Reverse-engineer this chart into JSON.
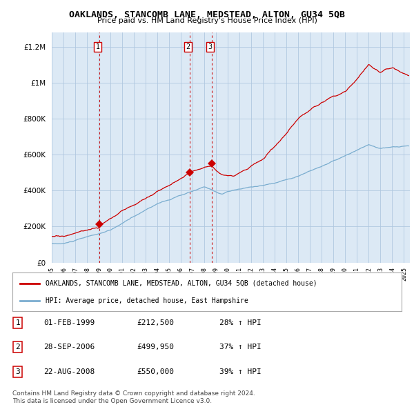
{
  "title": "OAKLANDS, STANCOMB LANE, MEDSTEAD, ALTON, GU34 5QB",
  "subtitle": "Price paid vs. HM Land Registry's House Price Index (HPI)",
  "legend_line1": "OAKLANDS, STANCOMB LANE, MEDSTEAD, ALTON, GU34 5QB (detached house)",
  "legend_line2": "HPI: Average price, detached house, East Hampshire",
  "sale_points": [
    {
      "num": 1,
      "date_x": 1999.08,
      "price": 212500,
      "label": "1",
      "date_str": "01-FEB-1999",
      "price_str": "£212,500",
      "hpi_str": "28% ↑ HPI"
    },
    {
      "num": 2,
      "date_x": 2006.74,
      "price": 499950,
      "label": "2",
      "date_str": "28-SEP-2006",
      "price_str": "£499,950",
      "hpi_str": "37% ↑ HPI"
    },
    {
      "num": 3,
      "date_x": 2008.65,
      "price": 550000,
      "label": "3",
      "date_str": "22-AUG-2008",
      "price_str": "£550,000",
      "hpi_str": "39% ↑ HPI"
    }
  ],
  "footer_line1": "Contains HM Land Registry data © Crown copyright and database right 2024.",
  "footer_line2": "This data is licensed under the Open Government Licence v3.0.",
  "xlim": [
    1995.0,
    2025.5
  ],
  "ylim": [
    0,
    1280000
  ],
  "red_color": "#cc0000",
  "blue_color": "#7aadcf",
  "vline_color": "#cc0000",
  "background_color": "#ffffff",
  "chart_bg_color": "#dce9f5",
  "grid_color": "#b0c8e0"
}
